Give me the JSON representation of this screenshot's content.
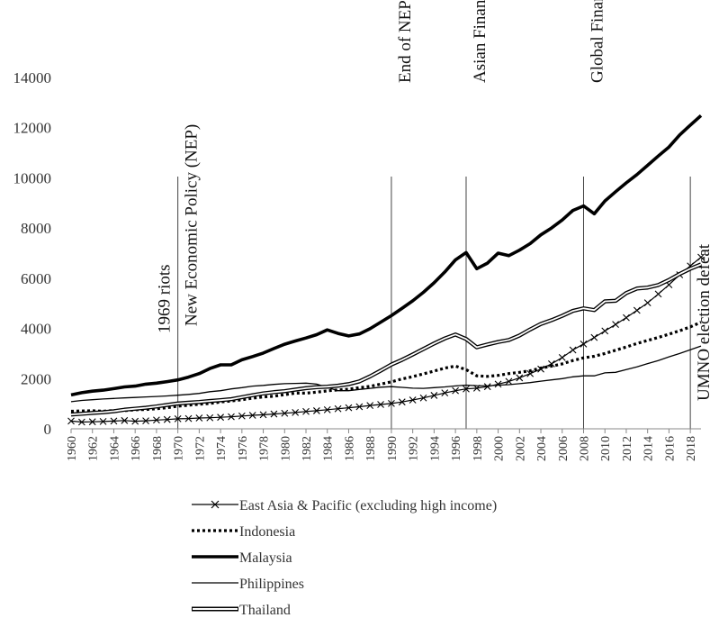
{
  "chart_data": {
    "type": "line",
    "title": "",
    "xlabel": "",
    "ylabel": "",
    "xlim": [
      1960,
      2019
    ],
    "ylim": [
      0,
      14000
    ],
    "yticks": [
      0,
      2000,
      4000,
      6000,
      8000,
      10000,
      12000,
      14000
    ],
    "xticks": [
      1960,
      1962,
      1964,
      1966,
      1968,
      1970,
      1972,
      1974,
      1976,
      1978,
      1980,
      1982,
      1984,
      1986,
      1988,
      1990,
      1992,
      1994,
      1996,
      1998,
      2000,
      2002,
      2004,
      2006,
      2008,
      2010,
      2012,
      2014,
      2016,
      2018
    ],
    "grid": false,
    "legend_position": "bottom",
    "events": [
      {
        "year": 1970,
        "label": "1969 riots",
        "anchor": "left"
      },
      {
        "year": 1970,
        "label": "New Economic Policy (NEP)",
        "anchor": "right"
      },
      {
        "year": 1990,
        "label": "End of NEP",
        "anchor": "right"
      },
      {
        "year": 1997,
        "label": "Asian Financial Crisis",
        "anchor": "right"
      },
      {
        "year": 2008,
        "label": "Global Financial Crisis",
        "anchor": "right"
      },
      {
        "year": 2018,
        "label": "UMNO election defeat",
        "anchor": "right"
      }
    ],
    "series": [
      {
        "name": "East Asia & Pacific (excluding high income)",
        "style": "cross",
        "values": [
          310,
          270,
          280,
          290,
          310,
          330,
          300,
          320,
          350,
          370,
          400,
          410,
          430,
          440,
          460,
          480,
          510,
          540,
          560,
          590,
          620,
          650,
          690,
          720,
          760,
          800,
          840,
          880,
          930,
          970,
          1010,
          1070,
          1150,
          1230,
          1330,
          1430,
          1520,
          1590,
          1620,
          1680,
          1780,
          1890,
          2030,
          2200,
          2380,
          2590,
          2840,
          3140,
          3380,
          3640,
          3900,
          4160,
          4430,
          4720,
          5020,
          5370,
          5740,
          6140,
          6490,
          6840
        ]
      },
      {
        "name": "Indonesia",
        "style": "dotted",
        "values": [
          700,
          710,
          720,
          700,
          730,
          720,
          760,
          770,
          800,
          840,
          900,
          940,
          980,
          1010,
          1070,
          1110,
          1160,
          1220,
          1270,
          1300,
          1360,
          1420,
          1420,
          1460,
          1510,
          1550,
          1580,
          1640,
          1690,
          1780,
          1870,
          1990,
          2080,
          2190,
          2300,
          2420,
          2500,
          2360,
          2110,
          2090,
          2130,
          2200,
          2250,
          2310,
          2420,
          2500,
          2590,
          2720,
          2830,
          2890,
          3000,
          3130,
          3260,
          3400,
          3520,
          3640,
          3770,
          3910,
          4060,
          4250
        ]
      },
      {
        "name": "Malaysia",
        "style": "thick",
        "values": [
          1350,
          1440,
          1500,
          1540,
          1600,
          1670,
          1700,
          1780,
          1820,
          1880,
          1950,
          2060,
          2200,
          2400,
          2550,
          2550,
          2750,
          2880,
          3020,
          3200,
          3370,
          3500,
          3620,
          3750,
          3940,
          3800,
          3700,
          3780,
          3990,
          4250,
          4510,
          4800,
          5100,
          5440,
          5820,
          6250,
          6730,
          7020,
          6380,
          6600,
          7000,
          6900,
          7120,
          7380,
          7730,
          8000,
          8320,
          8700,
          8880,
          8570,
          9080,
          9450,
          9800,
          10130,
          10500,
          10870,
          11230,
          11710,
          12100,
          12480
        ]
      },
      {
        "name": "Philippines",
        "style": "thin",
        "values": [
          1080,
          1130,
          1160,
          1190,
          1210,
          1230,
          1250,
          1270,
          1290,
          1310,
          1340,
          1370,
          1410,
          1480,
          1520,
          1590,
          1640,
          1700,
          1730,
          1770,
          1800,
          1810,
          1820,
          1780,
          1650,
          1520,
          1520,
          1570,
          1610,
          1660,
          1680,
          1650,
          1620,
          1610,
          1640,
          1670,
          1710,
          1740,
          1720,
          1710,
          1740,
          1760,
          1800,
          1840,
          1900,
          1950,
          2000,
          2070,
          2110,
          2110,
          2230,
          2250,
          2360,
          2470,
          2600,
          2720,
          2870,
          3000,
          3150,
          3300
        ]
      },
      {
        "name": "Thailand",
        "style": "double",
        "values": [
          570,
          600,
          630,
          660,
          700,
          760,
          800,
          840,
          890,
          950,
          1010,
          1040,
          1070,
          1110,
          1140,
          1180,
          1260,
          1340,
          1410,
          1460,
          1500,
          1560,
          1620,
          1660,
          1680,
          1720,
          1780,
          1890,
          2090,
          2320,
          2560,
          2750,
          2960,
          3180,
          3400,
          3600,
          3760,
          3580,
          3250,
          3360,
          3460,
          3540,
          3720,
          3960,
          4180,
          4330,
          4500,
          4700,
          4800,
          4730,
          5080,
          5100,
          5410,
          5590,
          5630,
          5730,
          5930,
          6170,
          6380,
          6550
        ]
      }
    ]
  }
}
